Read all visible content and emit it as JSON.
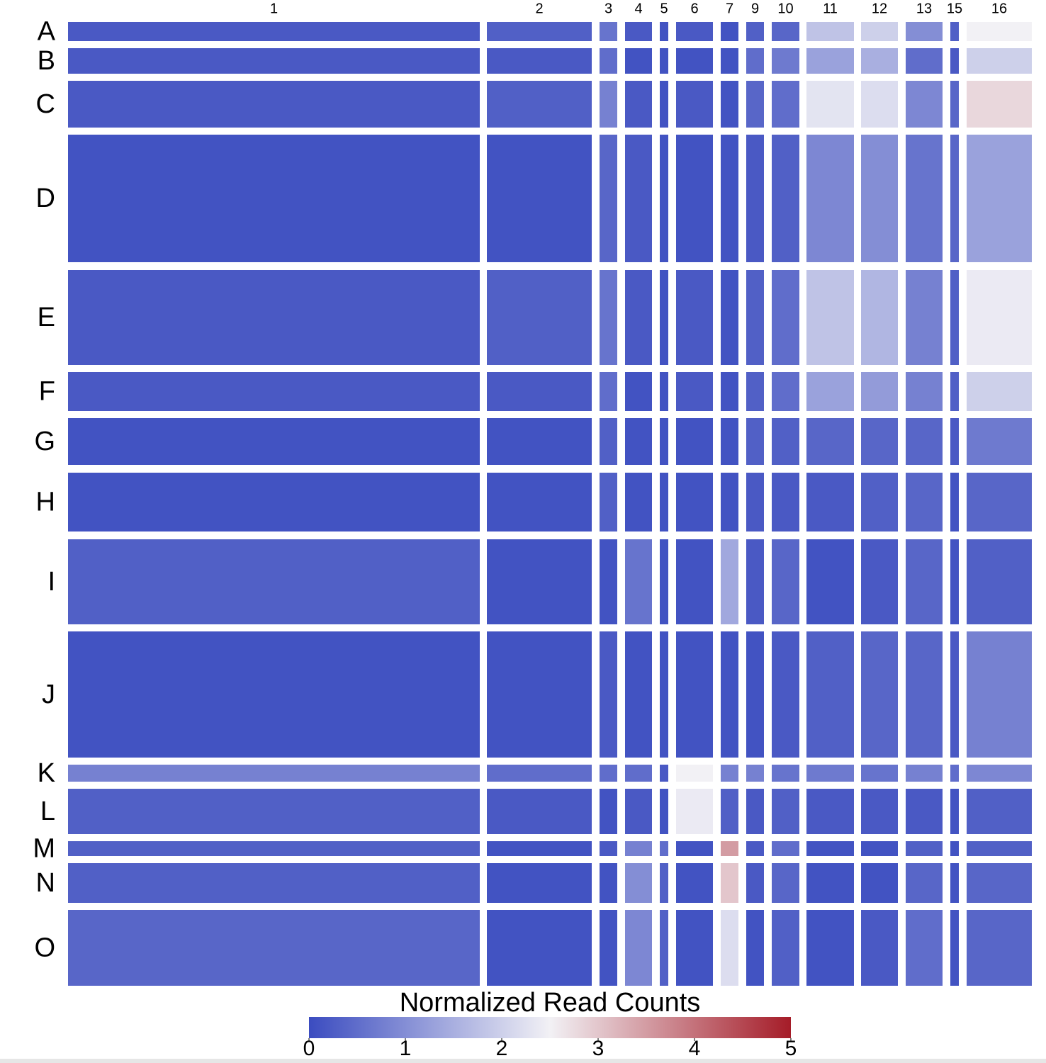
{
  "chart_data": {
    "type": "heatmap",
    "x": [
      "1",
      "2",
      "3",
      "4",
      "5",
      "6",
      "7",
      "9",
      "10",
      "11",
      "12",
      "13",
      "15",
      "16"
    ],
    "y": [
      "A",
      "B",
      "C",
      "D",
      "E",
      "F",
      "G",
      "H",
      "I",
      "J",
      "K",
      "L",
      "M",
      "N",
      "O"
    ],
    "values": [
      [
        0.2,
        0.3,
        0.6,
        0.2,
        0.1,
        0.2,
        0.1,
        0.3,
        0.4,
        1.8,
        2.0,
        1.0,
        0.3,
        2.5
      ],
      [
        0.2,
        0.2,
        0.5,
        0.1,
        0.1,
        0.1,
        0.1,
        0.5,
        0.7,
        1.3,
        1.5,
        0.5,
        0.2,
        2.0
      ],
      [
        0.2,
        0.3,
        0.8,
        0.2,
        0.1,
        0.2,
        0.1,
        0.4,
        0.5,
        2.3,
        2.2,
        0.9,
        0.4,
        2.8
      ],
      [
        0.1,
        0.1,
        0.4,
        0.2,
        0.1,
        0.1,
        0.1,
        0.2,
        0.3,
        0.9,
        1.0,
        0.6,
        0.4,
        1.3
      ],
      [
        0.2,
        0.3,
        0.6,
        0.2,
        0.1,
        0.2,
        0.1,
        0.3,
        0.5,
        1.8,
        1.6,
        0.8,
        0.3,
        2.4
      ],
      [
        0.2,
        0.2,
        0.5,
        0.1,
        0.1,
        0.2,
        0.1,
        0.3,
        0.5,
        1.3,
        1.2,
        0.8,
        0.3,
        2.0
      ],
      [
        0.1,
        0.1,
        0.3,
        0.1,
        0.1,
        0.1,
        0.1,
        0.3,
        0.3,
        0.4,
        0.4,
        0.4,
        0.2,
        0.7
      ],
      [
        0.1,
        0.1,
        0.3,
        0.1,
        0.1,
        0.1,
        0.1,
        0.2,
        0.2,
        0.2,
        0.3,
        0.4,
        0.1,
        0.4
      ],
      [
        0.3,
        0.1,
        0.1,
        0.6,
        0.1,
        0.1,
        1.4,
        0.2,
        0.4,
        0.1,
        0.2,
        0.4,
        0.1,
        0.3
      ],
      [
        0.1,
        0.1,
        0.2,
        0.1,
        0.1,
        0.1,
        0.1,
        0.1,
        0.2,
        0.3,
        0.4,
        0.4,
        0.2,
        0.8
      ],
      [
        0.8,
        0.5,
        0.5,
        0.5,
        0.2,
        2.5,
        0.8,
        0.8,
        0.6,
        0.7,
        0.6,
        0.8,
        0.5,
        0.9
      ],
      [
        0.3,
        0.2,
        0.1,
        0.2,
        0.1,
        2.4,
        0.3,
        0.2,
        0.3,
        0.2,
        0.2,
        0.2,
        0.1,
        0.3
      ],
      [
        0.3,
        0.1,
        0.2,
        0.8,
        0.5,
        0.1,
        3.5,
        0.2,
        0.5,
        0.1,
        0.1,
        0.3,
        0.1,
        0.3
      ],
      [
        0.3,
        0.1,
        0.1,
        1.0,
        0.3,
        0.1,
        3.0,
        0.2,
        0.4,
        0.1,
        0.1,
        0.4,
        0.1,
        0.4
      ],
      [
        0.4,
        0.1,
        0.1,
        0.9,
        0.3,
        0.1,
        2.2,
        0.1,
        0.3,
        0.1,
        0.2,
        0.5,
        0.1,
        0.4
      ]
    ],
    "colormap": [
      "#3b4cc0",
      "#f2f1f5",
      "#a51c28"
    ],
    "colorbar_label": "Normalized Read Counts",
    "clim": [
      0,
      5
    ],
    "cticks": [
      0,
      1,
      2,
      3,
      4,
      5
    ]
  }
}
